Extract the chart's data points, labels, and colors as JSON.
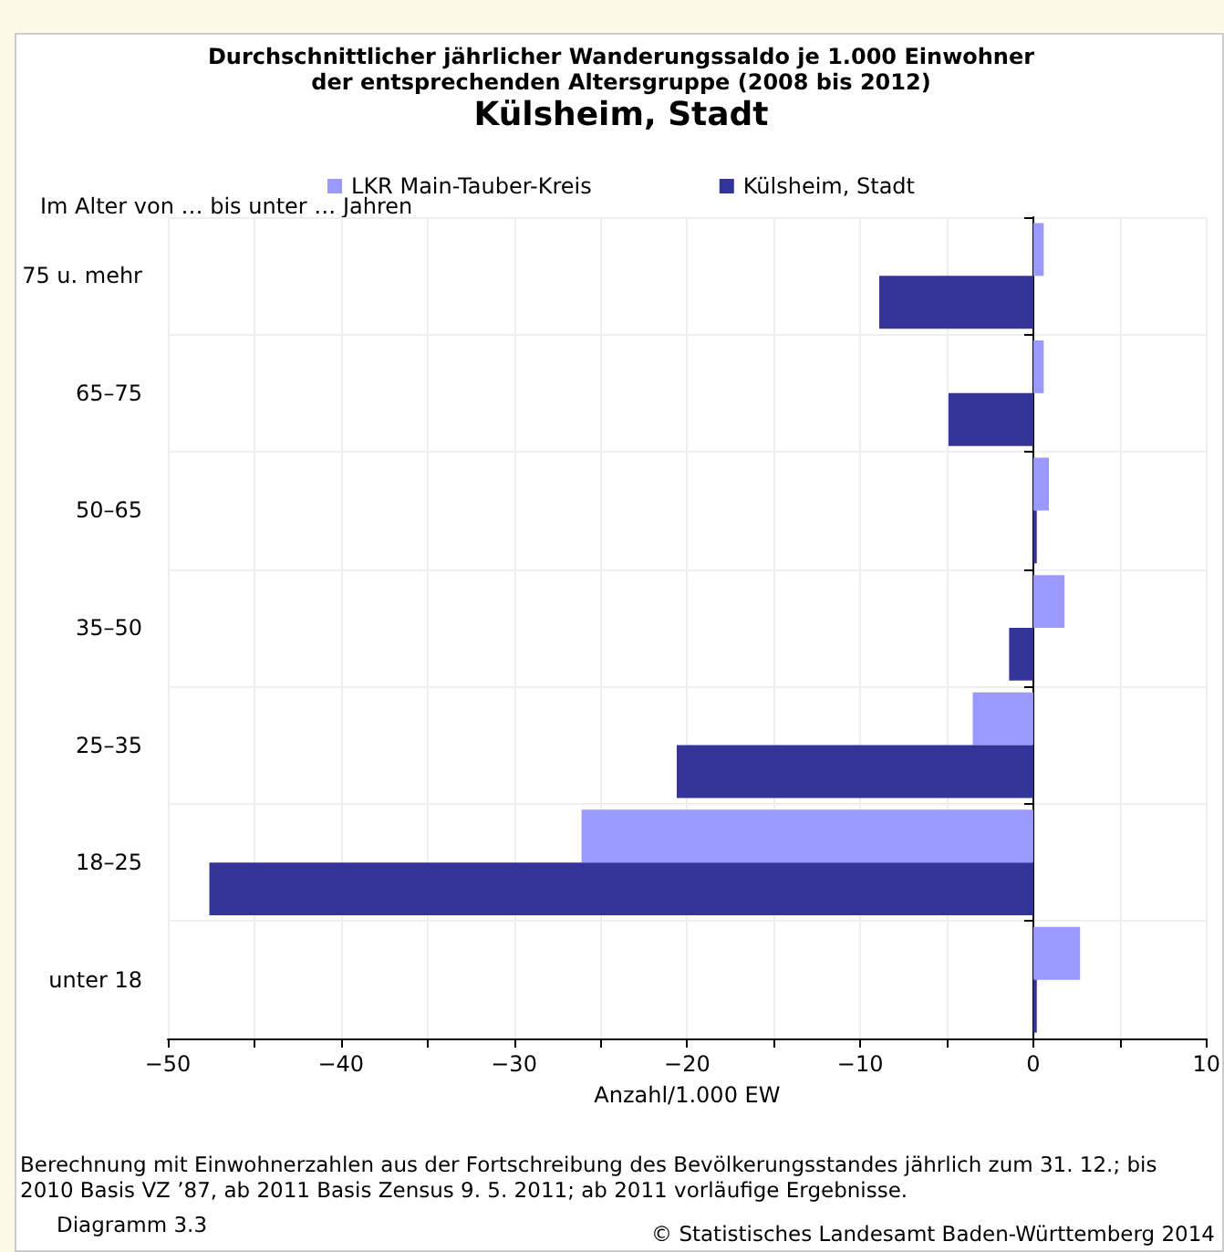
{
  "chart_data": {
    "type": "bar",
    "orientation": "horizontal",
    "title": "Durchschnittlicher jährlicher Wanderungssaldo je 1.000 Einwohner\nder entsprechenden Altersgruppe (2008 bis 2012)",
    "subtitle": "Külsheim, Stadt",
    "ylabel": "Im Alter von … bis unter … Jahren",
    "xlabel": "Anzahl/1.000 EW",
    "categories": [
      "75 u. mehr",
      "65–75",
      "50–65",
      "35–50",
      "25–35",
      "18–25",
      "unter 18"
    ],
    "series": [
      {
        "name": "LKR Main-Tauber-Kreis",
        "color": "#9999ff",
        "values": [
          0.6,
          0.6,
          0.9,
          1.8,
          -3.5,
          -26.1,
          2.7
        ]
      },
      {
        "name": "Külsheim, Stadt",
        "color": "#333399",
        "values": [
          -8.9,
          -4.9,
          0.2,
          -1.4,
          -20.6,
          -47.6,
          0.2
        ]
      }
    ],
    "xlim": [
      -50,
      10
    ],
    "xticks": [
      {
        "value": -50,
        "label": "−50"
      },
      {
        "value": -45,
        "label": null
      },
      {
        "value": -40,
        "label": "−40"
      },
      {
        "value": -35,
        "label": null
      },
      {
        "value": -30,
        "label": "−30"
      },
      {
        "value": -25,
        "label": null
      },
      {
        "value": -20,
        "label": "−20"
      },
      {
        "value": -15,
        "label": null
      },
      {
        "value": -10,
        "label": "−10"
      },
      {
        "value": -5,
        "label": null
      },
      0,
      {
        "value": 5,
        "label": null
      },
      10
    ],
    "grid": true,
    "legend": "top",
    "annotations": [
      "Berechnung mit Einwohnerzahlen aus der Fortschreibung des Bevölkerungsstandes jährlich zum 31. 12.; bis 2010 Basis VZ ’87, ab 2011 Basis Zensus 9. 5. 2011; ab 2011 vorläufige Ergebnisse.",
      "Diagramm 3.3",
      "© Statistisches Landesamt Baden-Württemberg 2014"
    ]
  }
}
